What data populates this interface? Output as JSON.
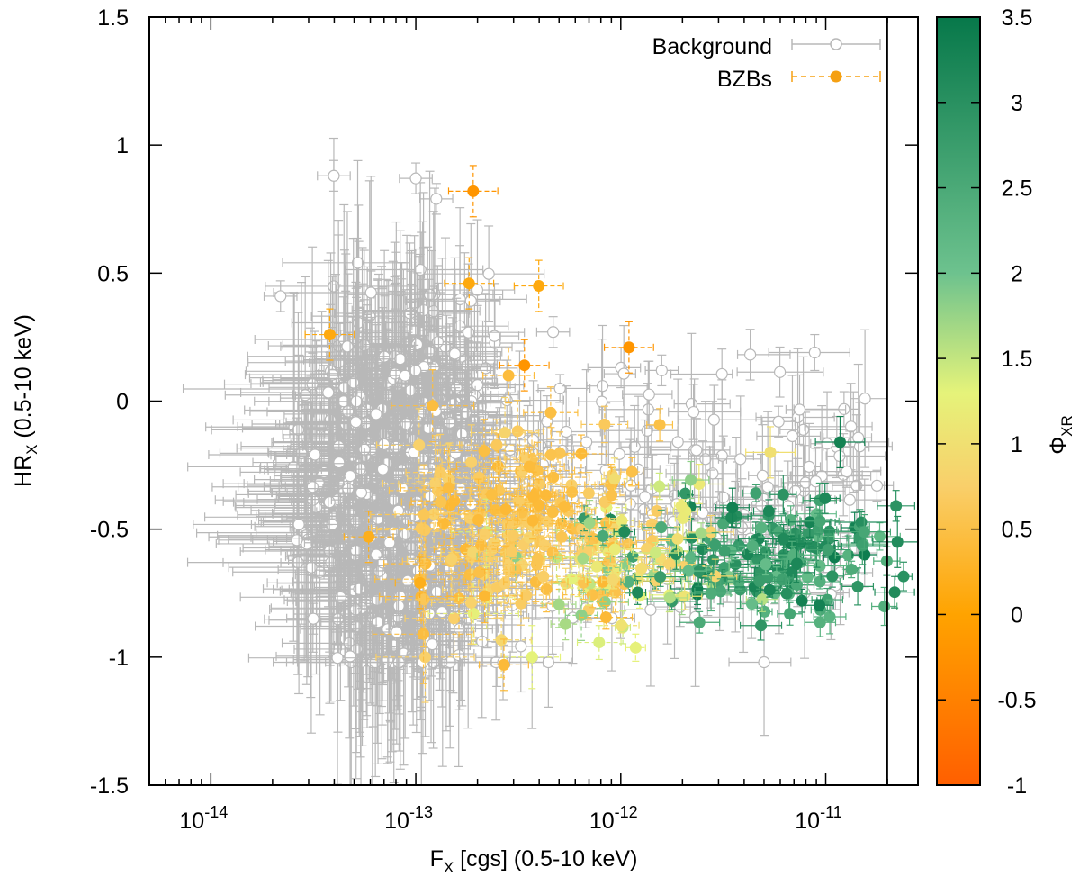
{
  "chart_data": {
    "type": "scatter",
    "title": "",
    "xlabel": {
      "main": "F",
      "sub": "X",
      "rest": " [cgs] (0.5-10 keV)"
    },
    "ylabel": {
      "main": "HR",
      "sub": "X",
      "rest": " (0.5-10 keV)"
    },
    "x_scale": "log",
    "xlim_log10": [
      -14.3,
      -10.55
    ],
    "ylim": [
      -1.5,
      1.5
    ],
    "x_ticks": [
      {
        "base": "10",
        "exp": "-14",
        "log10": -14
      },
      {
        "base": "10",
        "exp": "-13",
        "log10": -13
      },
      {
        "base": "10",
        "exp": "-12",
        "log10": -12
      },
      {
        "base": "10",
        "exp": "-11",
        "log10": -11
      }
    ],
    "y_ticks": [
      {
        "label": "1.5",
        "value": 1.5
      },
      {
        "label": "1",
        "value": 1.0
      },
      {
        "label": "0.5",
        "value": 0.5
      },
      {
        "label": "0",
        "value": 0.0
      },
      {
        "label": "-0.5",
        "value": -0.5
      },
      {
        "label": "-1",
        "value": -1.0
      },
      {
        "label": "-1.5",
        "value": -1.5
      }
    ],
    "vertical_line_log10": -10.7,
    "colorbar": {
      "label_main": "Φ",
      "label_sub": "XR",
      "range": [
        -1,
        3.5
      ],
      "stops": [
        {
          "value": -1.0,
          "color": "#ff5f00"
        },
        {
          "value": 0.0,
          "color": "#ffa300"
        },
        {
          "value": 0.75,
          "color": "#f9cf6a"
        },
        {
          "value": 1.3,
          "color": "#e5f37a"
        },
        {
          "value": 2.0,
          "color": "#6dc28e"
        },
        {
          "value": 3.5,
          "color": "#07784a"
        }
      ],
      "ticks": [
        {
          "label": "3.5",
          "value": 3.5
        },
        {
          "label": "3",
          "value": 3.0
        },
        {
          "label": "2.5",
          "value": 2.5
        },
        {
          "label": "2",
          "value": 2.0
        },
        {
          "label": "1.5",
          "value": 1.5
        },
        {
          "label": "1",
          "value": 1.0
        },
        {
          "label": "0.5",
          "value": 0.5
        },
        {
          "label": "0",
          "value": 0.0
        },
        {
          "label": "-0.5",
          "value": -0.5
        },
        {
          "label": "-1",
          "value": -1.0
        }
      ]
    },
    "legend": {
      "position": "top-right",
      "entries": [
        {
          "label": "Background",
          "style": "open-circle",
          "color": "#b8b8b8"
        },
        {
          "label": "BZBs",
          "style": "filled-circle-dashed",
          "color": "#f5a012"
        }
      ]
    },
    "series": [
      {
        "name": "Background",
        "description": "open grey circles with error bars",
        "color": "#b8b8b8",
        "n": 900,
        "points_sample": [
          {
            "log10_fx": -13.66,
            "hr": 0.41
          },
          {
            "log10_fx": -13.4,
            "hr": 0.88
          },
          {
            "log10_fx": -13.0,
            "hr": 0.87
          },
          {
            "log10_fx": -12.9,
            "hr": 0.79
          },
          {
            "log10_fx": -12.33,
            "hr": 0.27
          },
          {
            "log10_fx": -11.8,
            "hr": 0.12
          },
          {
            "log10_fx": -11.23,
            "hr": -0.08
          },
          {
            "log10_fx": -10.75,
            "hr": -0.33
          },
          {
            "log10_fx": -13.5,
            "hr": -0.85
          },
          {
            "log10_fx": -12.92,
            "hr": -0.95
          }
        ]
      },
      {
        "name": "BZBs",
        "description": "filled circles coloured by Phi_XR",
        "n": 370,
        "points_sample": [
          {
            "log10_fx": -13.42,
            "hr": 0.26,
            "phi": 0.1
          },
          {
            "log10_fx": -12.72,
            "hr": 0.82,
            "phi": -0.2
          },
          {
            "log10_fx": -12.74,
            "hr": 0.46,
            "phi": 0.1
          },
          {
            "log10_fx": -12.4,
            "hr": 0.45,
            "phi": 0.1
          },
          {
            "log10_fx": -11.96,
            "hr": 0.21,
            "phi": -0.2
          },
          {
            "log10_fx": -12.47,
            "hr": 0.14,
            "phi": -0.2
          },
          {
            "log10_fx": -13.23,
            "hr": -0.53,
            "phi": 0.2
          },
          {
            "log10_fx": -12.98,
            "hr": -0.71,
            "phi": 0.2
          },
          {
            "log10_fx": -12.57,
            "hr": -1.03,
            "phi": 0.4
          },
          {
            "log10_fx": -11.27,
            "hr": -0.2,
            "phi": 1.0
          },
          {
            "log10_fx": -10.93,
            "hr": -0.16,
            "phi": 3.3
          },
          {
            "log10_fx": -10.65,
            "hr": -0.55,
            "phi": 3.1
          }
        ]
      }
    ]
  }
}
